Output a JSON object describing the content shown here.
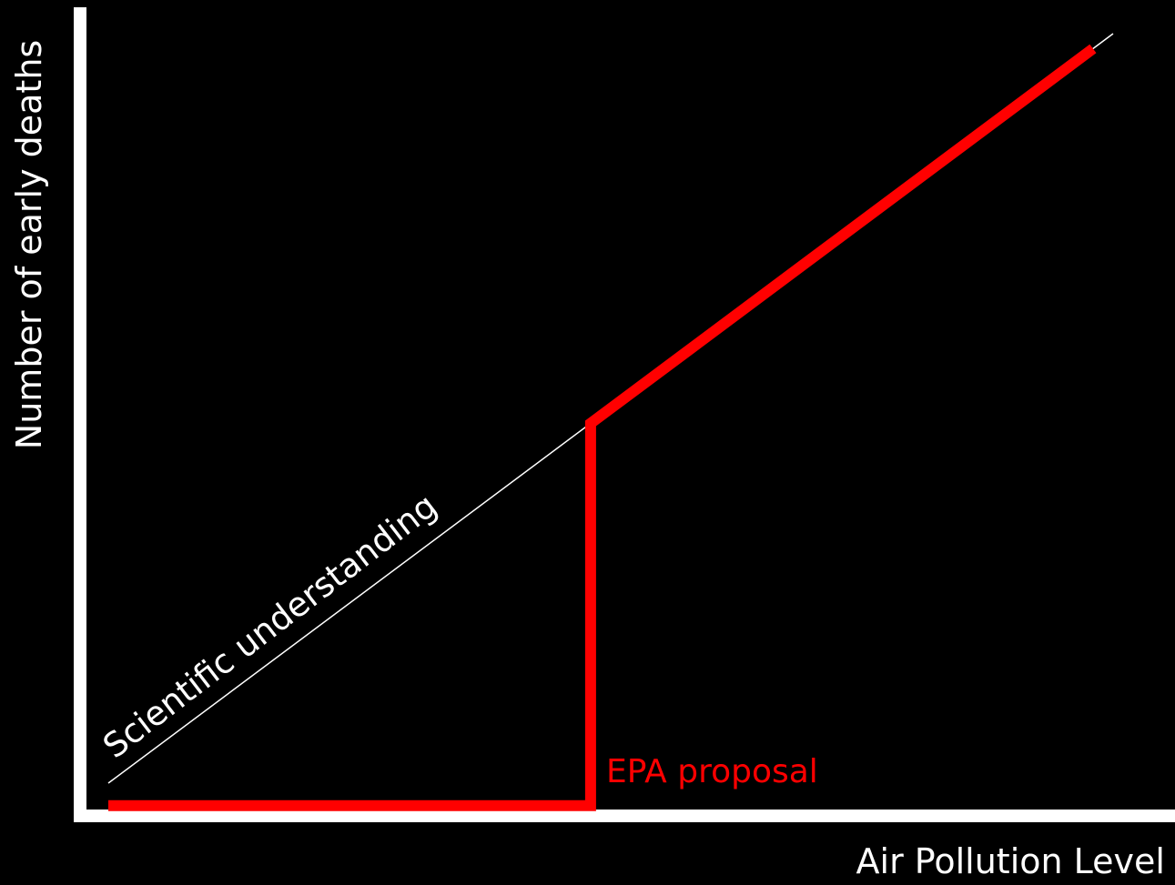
{
  "chart_data": {
    "type": "line",
    "title": "",
    "xlabel": "Air Pollution Level",
    "ylabel": "Number of early deaths",
    "grid": false,
    "legend": "none",
    "xlim": [
      0,
      1
    ],
    "ylim": [
      0,
      1
    ],
    "series": [
      {
        "name": "Scientific understanding",
        "color": "#ffffff",
        "style": "thin",
        "x": [
          0.0,
          1.0
        ],
        "y": [
          0.0,
          1.0
        ]
      },
      {
        "name": "EPA proposal",
        "color": "#ff0000",
        "style": "thick",
        "x": [
          0.0,
          0.48,
          0.48,
          0.98
        ],
        "y": [
          -0.03,
          -0.03,
          0.48,
          0.98
        ]
      }
    ],
    "annotations": [
      {
        "text": "Scientific understanding",
        "color": "#ffffff"
      },
      {
        "text": "EPA proposal",
        "color": "#ff0000"
      }
    ]
  },
  "colors": {
    "background": "#000000",
    "axis": "#ffffff",
    "science_line": "#ffffff",
    "epa_line": "#ff0000"
  }
}
